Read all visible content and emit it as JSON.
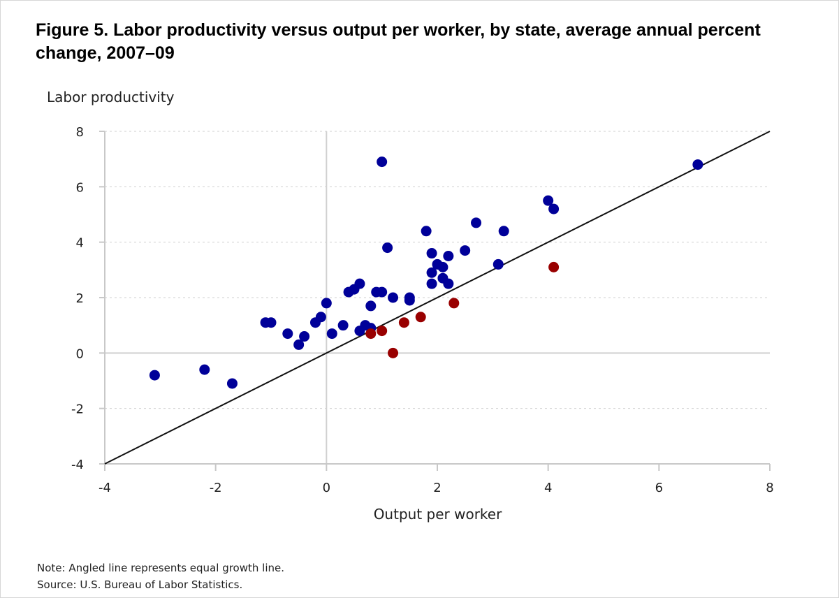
{
  "title": "Figure 5. Labor productivity versus output per worker, by state, average annual percent change, 2007–09",
  "note": "Note: Angled line represents equal growth line.",
  "source": "Source: U.S. Bureau of Labor Statistics.",
  "colors": {
    "above": "#000099",
    "below": "#990000",
    "equal_line": "#111111",
    "grid": "#cfcfcf",
    "axis": "#c8c8c8"
  },
  "chart_data": {
    "type": "scatter",
    "title": "Figure 5. Labor productivity versus output per worker, by state, average annual percent change, 2007–09",
    "xlabel": "Output per worker",
    "ylabel": "Labor productivity",
    "xlim": [
      -4,
      8
    ],
    "ylim": [
      -4,
      8
    ],
    "xticks": [
      -4,
      -2,
      0,
      2,
      4,
      6,
      8
    ],
    "yticks": [
      -4,
      -2,
      0,
      2,
      4,
      6,
      8
    ],
    "grid": "horizontal dotted",
    "reference_line": {
      "x": [
        -4,
        8
      ],
      "y": [
        -4,
        8
      ]
    },
    "series": [
      {
        "color": "#000099",
        "points": [
          [
            -3.1,
            -0.8
          ],
          [
            -2.2,
            -0.6
          ],
          [
            -1.7,
            -1.1
          ],
          [
            -1.1,
            1.1
          ],
          [
            -1.0,
            1.1
          ],
          [
            -0.7,
            0.7
          ],
          [
            -0.5,
            0.3
          ],
          [
            -0.4,
            0.6
          ],
          [
            -0.2,
            1.1
          ],
          [
            -0.1,
            1.3
          ],
          [
            0.0,
            1.8
          ],
          [
            0.1,
            0.7
          ],
          [
            0.3,
            1.0
          ],
          [
            0.4,
            2.2
          ],
          [
            0.5,
            2.3
          ],
          [
            0.6,
            2.5
          ],
          [
            0.6,
            0.8
          ],
          [
            0.7,
            1.0
          ],
          [
            0.8,
            0.9
          ],
          [
            0.8,
            1.7
          ],
          [
            0.9,
            2.2
          ],
          [
            1.0,
            2.2
          ],
          [
            1.0,
            6.9
          ],
          [
            1.1,
            3.8
          ],
          [
            1.2,
            2.0
          ],
          [
            1.5,
            2.0
          ],
          [
            1.5,
            1.9
          ],
          [
            1.8,
            4.4
          ],
          [
            1.9,
            3.6
          ],
          [
            1.9,
            2.9
          ],
          [
            1.9,
            2.5
          ],
          [
            2.0,
            3.2
          ],
          [
            2.1,
            3.1
          ],
          [
            2.1,
            2.7
          ],
          [
            2.2,
            2.5
          ],
          [
            2.2,
            3.5
          ],
          [
            2.5,
            3.7
          ],
          [
            2.7,
            4.7
          ],
          [
            3.1,
            3.2
          ],
          [
            3.2,
            4.4
          ],
          [
            4.0,
            5.5
          ],
          [
            4.1,
            5.2
          ],
          [
            6.7,
            6.8
          ]
        ]
      },
      {
        "color": "#990000",
        "points": [
          [
            0.8,
            0.7
          ],
          [
            1.0,
            0.8
          ],
          [
            1.2,
            0.0
          ],
          [
            1.4,
            1.1
          ],
          [
            1.7,
            1.3
          ],
          [
            2.3,
            1.8
          ],
          [
            4.1,
            3.1
          ]
        ]
      }
    ]
  }
}
